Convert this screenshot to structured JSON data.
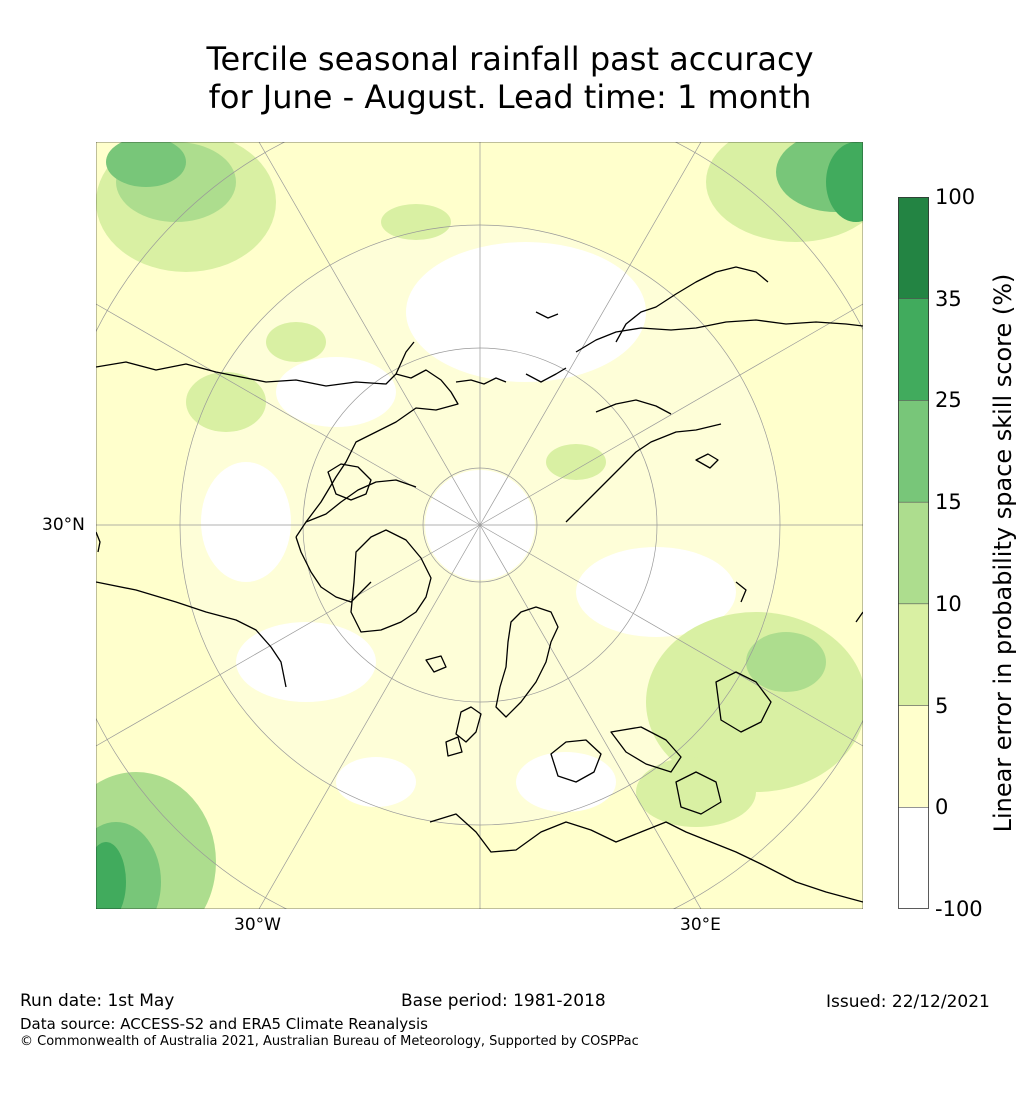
{
  "title_line1": "Tercile seasonal rainfall past accuracy",
  "title_line2": "for June - August. Lead time: 1 month",
  "map": {
    "projection": "north polar stereographic",
    "labels": {
      "lat_30n": "30°N",
      "lon_30w": "30°W",
      "lon_30e": "30°E"
    }
  },
  "colorbar": {
    "label": "Linear error in probability space skill score (%)",
    "ticks": [
      "100",
      "35",
      "25",
      "15",
      "10",
      "5",
      "0",
      "-100"
    ],
    "bins": [
      {
        "from": -100,
        "to": 0,
        "color": "#ffffff"
      },
      {
        "from": 0,
        "to": 5,
        "color": "#ffffcc"
      },
      {
        "from": 5,
        "to": 10,
        "color": "#d9f0a3"
      },
      {
        "from": 10,
        "to": 15,
        "color": "#addd8e"
      },
      {
        "from": 15,
        "to": 25,
        "color": "#78c679"
      },
      {
        "from": 25,
        "to": 35,
        "color": "#41ab5d"
      },
      {
        "from": 35,
        "to": 100,
        "color": "#238443"
      }
    ]
  },
  "footer": {
    "run_date": "Run date: 1st May",
    "base_period": "Base period: 1981-2018",
    "issued": "Issued: 22/12/2021",
    "data_source": "Data source: ACCESS-S2 and ERA5 Climate Reanalysis",
    "copyright": "© Commonwealth of Australia 2021, Australian Bureau of Meteorology, Supported by COSPPac"
  }
}
